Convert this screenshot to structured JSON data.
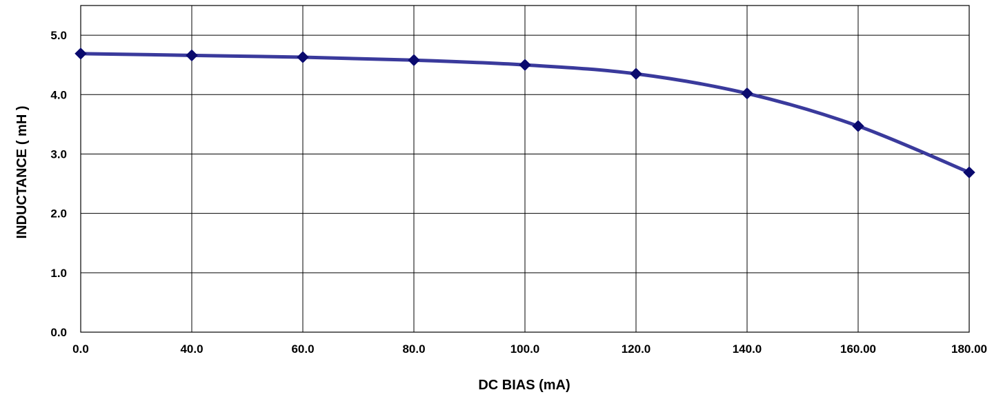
{
  "chart_data": {
    "type": "line",
    "title": "",
    "xlabel": "DC BIAS (mA)",
    "ylabel": "INDUCTANCE ( mH )",
    "x_tick_labels": [
      "0.0",
      "40.0",
      "60.0",
      "80.0",
      "100.0",
      "120.0",
      "140.0",
      "160.00",
      "180.00"
    ],
    "y_tick_labels": [
      "0.0",
      "1.0",
      "2.0",
      "3.0",
      "4.0",
      "5.0"
    ],
    "ylim": [
      0,
      5.5
    ],
    "grid": true,
    "legend": "none",
    "line_color": "#3a3a9c",
    "marker_color": "#0a0a6e",
    "series": [
      {
        "values": [
          4.69,
          4.66,
          4.63,
          4.58,
          4.5,
          4.35,
          4.02,
          3.47,
          2.69
        ]
      }
    ]
  }
}
